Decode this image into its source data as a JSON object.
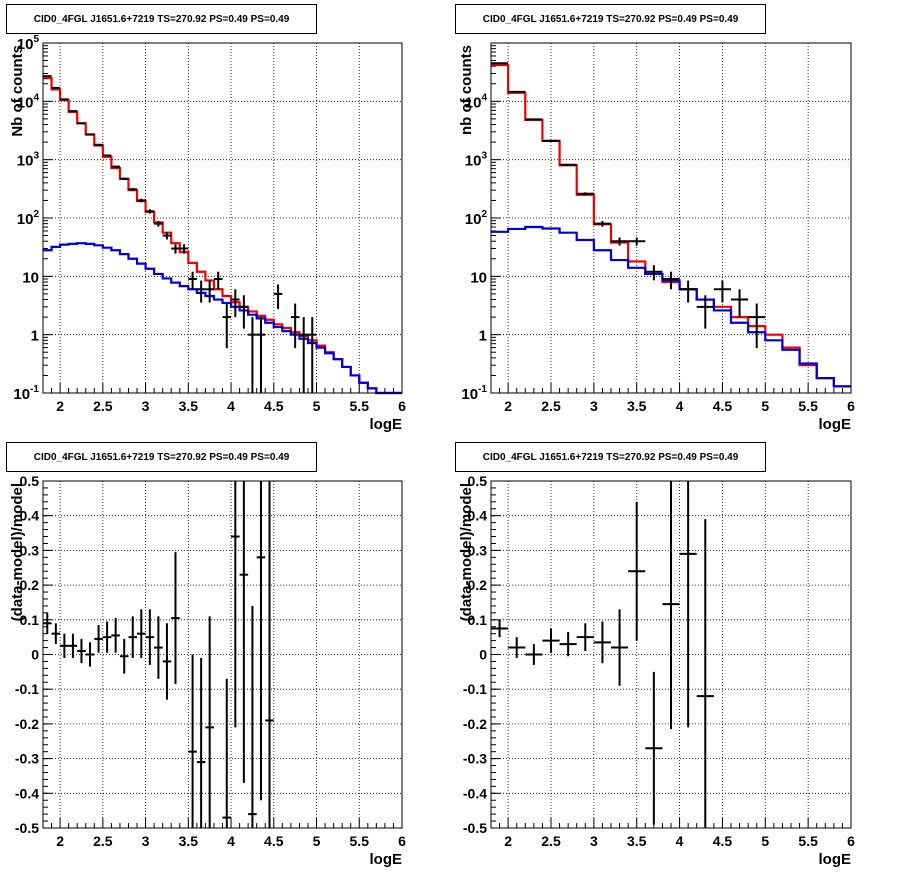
{
  "colors": {
    "data": "#000000",
    "model": "#ee0000",
    "background": "#0000dd",
    "grid": "#000000"
  },
  "panels": [
    {
      "title": "CID0_4FGL J1651.6+7219 TS=270.92 PS=0.49 PS=0.49",
      "xlabel": "logE",
      "ylabel": "Nb of counts"
    },
    {
      "title": "CID0_4FGL J1651.6+7219 TS=270.92 PS=0.49 PS=0.49",
      "xlabel": "logE",
      "ylabel": "nb of counts"
    },
    {
      "title": "CID0_4FGL J1651.6+7219 TS=270.92 PS=0.49 PS=0.49",
      "xlabel": "logE",
      "ylabel": "(data-model)/model"
    },
    {
      "title": "CID0_4FGL J1651.6+7219 TS=270.92 PS=0.49 PS=0.49",
      "xlabel": "logE",
      "ylabel": "(data-model)/model"
    }
  ],
  "chart_data": [
    {
      "type": "line",
      "title": "CID0_4FGL J1651.6+7219 TS=270.92 PS=0.49 PS=0.49",
      "xlabel": "logE",
      "ylabel": "Nb of counts",
      "xlim": [
        1.8,
        6.0
      ],
      "ylim": [
        0.1,
        100000
      ],
      "yscale": "log",
      "grid": true,
      "x_ticks": [
        "2",
        "2.5",
        "3",
        "3.5",
        "4",
        "4.5",
        "5",
        "5.5",
        "6"
      ],
      "y_ticks": [
        "10^-1",
        "1",
        "10",
        "10^2",
        "10^3",
        "10^4",
        "10^5"
      ],
      "bin_edges": [
        1.8,
        1.9,
        2.0,
        2.1,
        2.2,
        2.3,
        2.4,
        2.5,
        2.6,
        2.7,
        2.8,
        2.9,
        3.0,
        3.1,
        3.2,
        3.3,
        3.4,
        3.5,
        3.6,
        3.7,
        3.8,
        3.9,
        4.0,
        4.1,
        4.2,
        4.3,
        4.4,
        4.5,
        4.6,
        4.7,
        4.8,
        4.9,
        5.0,
        5.1,
        5.2,
        5.3,
        5.4,
        5.5,
        5.6,
        5.7,
        5.8,
        5.9,
        6.0
      ],
      "series": [
        {
          "role": "model",
          "style": "step",
          "values": [
            25000,
            16000,
            10500,
            6600,
            4200,
            2700,
            1750,
            1120,
            720,
            470,
            300,
            195,
            128,
            84,
            56,
            37,
            26,
            17,
            12,
            8.5,
            6.0,
            4.6,
            3.6,
            3.0,
            2.5,
            2.1,
            1.8,
            1.5,
            1.3,
            1.1,
            0.95,
            0.8,
            0.65,
            0.5,
            0.38,
            0.28,
            0.2,
            0.15,
            0.12,
            0.1,
            0.1,
            0.1
          ]
        },
        {
          "role": "background",
          "style": "step",
          "values": [
            28,
            32,
            35,
            36,
            37,
            36,
            34,
            31,
            28,
            24,
            20,
            16.5,
            13.5,
            11,
            9.2,
            7.8,
            6.8,
            6.0,
            5.2,
            4.6,
            4.0,
            3.5,
            3.0,
            2.6,
            2.2,
            1.9,
            1.6,
            1.35,
            1.15,
            1.0,
            0.85,
            0.72,
            0.6,
            0.48,
            0.38,
            0.28,
            0.2,
            0.15,
            0.12,
            0.1,
            0.1,
            0.1
          ]
        },
        {
          "role": "data",
          "style": "errorbar",
          "points": [
            {
              "x": 1.85,
              "y": 27000
            },
            {
              "x": 1.95,
              "y": 17000
            },
            {
              "x": 2.05,
              "y": 10800
            },
            {
              "x": 2.15,
              "y": 6800
            },
            {
              "x": 2.25,
              "y": 4200
            },
            {
              "x": 2.35,
              "y": 2700
            },
            {
              "x": 2.45,
              "y": 1800
            },
            {
              "x": 2.55,
              "y": 1180
            },
            {
              "x": 2.65,
              "y": 760
            },
            {
              "x": 2.75,
              "y": 470
            },
            {
              "x": 2.85,
              "y": 310
            },
            {
              "x": 2.95,
              "y": 200
            },
            {
              "x": 3.05,
              "y": 130
            },
            {
              "x": 3.15,
              "y": 80
            },
            {
              "x": 3.25,
              "y": 50
            },
            {
              "x": 3.35,
              "y": 30
            },
            {
              "x": 3.45,
              "y": 30
            },
            {
              "x": 3.55,
              "y": 9
            },
            {
              "x": 3.65,
              "y": 6
            },
            {
              "x": 3.75,
              "y": 6
            },
            {
              "x": 3.85,
              "y": 9
            },
            {
              "x": 3.95,
              "y": 2
            },
            {
              "x": 4.05,
              "y": 4
            },
            {
              "x": 4.15,
              "y": 3
            },
            {
              "x": 4.25,
              "y": 1
            },
            {
              "x": 4.35,
              "y": 1
            },
            {
              "x": 4.55,
              "y": 5
            },
            {
              "x": 4.75,
              "y": 2
            },
            {
              "x": 4.85,
              "y": 1
            },
            {
              "x": 4.95,
              "y": 1
            }
          ]
        }
      ]
    },
    {
      "type": "line",
      "title": "CID0_4FGL J1651.6+7219 TS=270.92 PS=0.49 PS=0.49",
      "xlabel": "logE",
      "ylabel": "nb of counts",
      "xlim": [
        1.8,
        6.0
      ],
      "ylim": [
        0.1,
        100000
      ],
      "yscale": "log",
      "grid": true,
      "x_ticks": [
        "2",
        "2.5",
        "3",
        "3.5",
        "4",
        "4.5",
        "5",
        "5.5",
        "6"
      ],
      "y_ticks": [
        "10^-1",
        "1",
        "10",
        "10^2",
        "10^3",
        "10^4"
      ],
      "bin_edges": [
        1.8,
        2.0,
        2.2,
        2.4,
        2.6,
        2.8,
        3.0,
        3.2,
        3.4,
        3.6,
        3.8,
        4.0,
        4.2,
        4.4,
        4.6,
        4.8,
        5.0,
        5.2,
        5.4,
        5.6,
        5.8,
        6.0
      ],
      "series": [
        {
          "role": "model",
          "style": "step",
          "values": [
            42000,
            14000,
            4800,
            2100,
            800,
            250,
            78,
            38,
            18,
            11,
            8,
            6,
            4,
            3,
            2,
            1.4,
            1,
            0.6,
            0.3,
            0.18,
            0.13
          ]
        },
        {
          "role": "background",
          "style": "step",
          "values": [
            58,
            65,
            70,
            66,
            56,
            42,
            28,
            19,
            14,
            11,
            8.5,
            6,
            4,
            2.6,
            1.6,
            1.1,
            0.8,
            0.55,
            0.32,
            0.18,
            0.13
          ]
        },
        {
          "role": "data",
          "style": "errorbar",
          "points": [
            {
              "x": 1.9,
              "y": 45000
            },
            {
              "x": 2.1,
              "y": 14500
            },
            {
              "x": 2.3,
              "y": 4900
            },
            {
              "x": 2.5,
              "y": 2100
            },
            {
              "x": 2.7,
              "y": 820
            },
            {
              "x": 2.9,
              "y": 260
            },
            {
              "x": 3.1,
              "y": 80
            },
            {
              "x": 3.3,
              "y": 40
            },
            {
              "x": 3.5,
              "y": 40
            },
            {
              "x": 3.7,
              "y": 12
            },
            {
              "x": 3.9,
              "y": 9
            },
            {
              "x": 4.1,
              "y": 6
            },
            {
              "x": 4.3,
              "y": 3
            },
            {
              "x": 4.5,
              "y": 6
            },
            {
              "x": 4.7,
              "y": 4
            },
            {
              "x": 4.9,
              "y": 2
            }
          ]
        }
      ]
    },
    {
      "type": "scatter",
      "title": "CID0_4FGL J1651.6+7219 TS=270.92 PS=0.49 PS=0.49",
      "xlabel": "logE",
      "ylabel": "(data-model)/model",
      "xlim": [
        1.8,
        6.0
      ],
      "ylim": [
        -0.5,
        0.5
      ],
      "grid": true,
      "x_ticks": [
        "2",
        "2.5",
        "3",
        "3.5",
        "4",
        "4.5",
        "5",
        "5.5",
        "6"
      ],
      "y_ticks": [
        "-0.5",
        "-0.4",
        "-0.3",
        "-0.2",
        "-0.1",
        "0",
        "0.1",
        "0.2",
        "0.3",
        "0.4",
        "0.5"
      ],
      "points": [
        {
          "x": 1.85,
          "y": 0.09,
          "err": 0.03
        },
        {
          "x": 1.95,
          "y": 0.06,
          "err": 0.03
        },
        {
          "x": 2.05,
          "y": 0.025,
          "err": 0.035
        },
        {
          "x": 2.15,
          "y": 0.025,
          "err": 0.035
        },
        {
          "x": 2.25,
          "y": 0.01,
          "err": 0.035
        },
        {
          "x": 2.35,
          "y": 0.0,
          "err": 0.035
        },
        {
          "x": 2.45,
          "y": 0.045,
          "err": 0.04
        },
        {
          "x": 2.55,
          "y": 0.05,
          "err": 0.045
        },
        {
          "x": 2.65,
          "y": 0.055,
          "err": 0.05
        },
        {
          "x": 2.75,
          "y": -0.005,
          "err": 0.05
        },
        {
          "x": 2.85,
          "y": 0.05,
          "err": 0.06
        },
        {
          "x": 2.95,
          "y": 0.06,
          "err": 0.07
        },
        {
          "x": 3.05,
          "y": 0.05,
          "err": 0.08
        },
        {
          "x": 3.15,
          "y": 0.02,
          "err": 0.09
        },
        {
          "x": 3.25,
          "y": -0.02,
          "err": 0.11
        },
        {
          "x": 3.35,
          "y": 0.105,
          "err": 0.19
        },
        {
          "x": 3.55,
          "y": -0.28,
          "err": 0.28
        },
        {
          "x": 3.65,
          "y": -0.31,
          "err": 0.3
        },
        {
          "x": 3.75,
          "y": -0.21,
          "err": 0.32
        },
        {
          "x": 3.95,
          "y": -0.47,
          "err": 0.4
        },
        {
          "x": 4.05,
          "y": 0.34,
          "err": 0.55
        },
        {
          "x": 4.15,
          "y": 0.23,
          "err": 0.6
        },
        {
          "x": 4.25,
          "y": -0.46,
          "err": 0.6
        },
        {
          "x": 4.35,
          "y": 0.28,
          "err": 0.7
        },
        {
          "x": 4.45,
          "y": -0.19,
          "err": 0.7
        }
      ]
    },
    {
      "type": "scatter",
      "title": "CID0_4FGL J1651.6+7219 TS=270.92 PS=0.49 PS=0.49",
      "xlabel": "logE",
      "ylabel": "(data-model)/model",
      "xlim": [
        1.8,
        6.0
      ],
      "ylim": [
        -0.5,
        0.5
      ],
      "grid": true,
      "x_ticks": [
        "2",
        "2.5",
        "3",
        "3.5",
        "4",
        "4.5",
        "5",
        "5.5",
        "6"
      ],
      "y_ticks": [
        "-0.5",
        "-0.4",
        "-0.3",
        "-0.2",
        "-0.1",
        "0",
        "0.1",
        "0.2",
        "0.3",
        "0.4",
        "0.5"
      ],
      "points": [
        {
          "x": 1.9,
          "y": 0.075,
          "err": 0.025
        },
        {
          "x": 2.1,
          "y": 0.02,
          "err": 0.03
        },
        {
          "x": 2.3,
          "y": 0.0,
          "err": 0.03
        },
        {
          "x": 2.5,
          "y": 0.04,
          "err": 0.035
        },
        {
          "x": 2.7,
          "y": 0.03,
          "err": 0.035
        },
        {
          "x": 2.9,
          "y": 0.05,
          "err": 0.04
        },
        {
          "x": 3.1,
          "y": 0.035,
          "err": 0.06
        },
        {
          "x": 3.3,
          "y": 0.02,
          "err": 0.11
        },
        {
          "x": 3.5,
          "y": 0.24,
          "err": 0.2
        },
        {
          "x": 3.7,
          "y": -0.27,
          "err": 0.22
        },
        {
          "x": 3.9,
          "y": 0.145,
          "err": 0.36
        },
        {
          "x": 4.1,
          "y": 0.29,
          "err": 0.5
        },
        {
          "x": 4.3,
          "y": -0.12,
          "err": 0.51
        }
      ]
    }
  ]
}
